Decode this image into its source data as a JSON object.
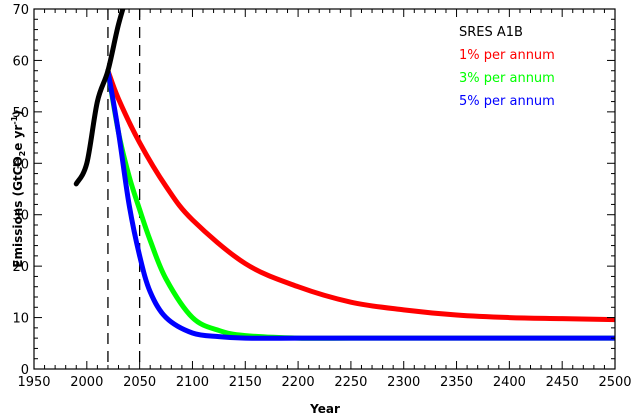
{
  "chart_data": {
    "type": "line",
    "xlabel": "Year",
    "ylabel_parts": [
      "Emissions (GtCO",
      "2",
      "e yr",
      "-1",
      ")"
    ],
    "xlim": [
      1950,
      2500
    ],
    "ylim": [
      0,
      70
    ],
    "xticks": [
      1950,
      2000,
      2050,
      2100,
      2150,
      2200,
      2250,
      2300,
      2350,
      2400,
      2450,
      2500
    ],
    "yticks": [
      0,
      10,
      20,
      30,
      40,
      50,
      60,
      70
    ],
    "vlines": [
      2020,
      2050
    ],
    "legend_position": "top-right",
    "grid": false,
    "series": [
      {
        "name": "SRES A1B",
        "color": "#000000",
        "x": [
          1990,
          2000,
          2010,
          2020,
          2030,
          2040
        ],
        "y": [
          36,
          40,
          52,
          58,
          67,
          74
        ]
      },
      {
        "name": "1% per annum",
        "color": "#ff0000",
        "x": [
          2020,
          2030,
          2050,
          2075,
          2100,
          2150,
          2200,
          2250,
          2300,
          2350,
          2400,
          2450,
          2500
        ],
        "y": [
          58,
          52.5,
          44,
          35.5,
          29,
          20.5,
          16,
          13,
          11.5,
          10.5,
          10,
          9.8,
          9.6
        ]
      },
      {
        "name": "3% per annum",
        "color": "#00ff00",
        "x": [
          2020,
          2030,
          2040,
          2050,
          2060,
          2075,
          2100,
          2125,
          2150,
          2200,
          2250,
          2300,
          2350,
          2400,
          2450,
          2500
        ],
        "y": [
          58,
          46,
          37.5,
          31,
          25,
          17.5,
          10,
          7.5,
          6.5,
          6,
          6,
          6,
          6,
          6,
          6,
          6
        ]
      },
      {
        "name": "5% per annum",
        "color": "#0000ff",
        "x": [
          2020,
          2030,
          2040,
          2050,
          2060,
          2075,
          2100,
          2125,
          2150,
          2200,
          2250,
          2300,
          2350,
          2400,
          2450,
          2500
        ],
        "y": [
          58,
          46,
          32,
          22,
          15,
          10,
          7,
          6.3,
          6,
          6,
          6,
          6,
          6,
          6,
          6,
          6
        ]
      }
    ]
  }
}
